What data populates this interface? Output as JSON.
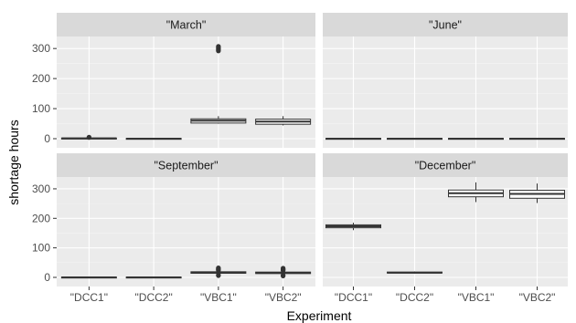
{
  "chart_data": {
    "type": "boxplot",
    "xlabel": "Experiment",
    "ylabel": "shortage hours",
    "ylim": [
      0,
      340
    ],
    "yticks": [
      0,
      100,
      200,
      300
    ],
    "categories": [
      "\"DCC1\"",
      "\"DCC2\"",
      "\"VBC1\"",
      "\"VBC2\""
    ],
    "grid": true,
    "colors": {
      "panel": "#ebebeb",
      "strip": "#d9d9d9",
      "grid": "#ffffff",
      "box_fill": "#ffffff",
      "box_line": "#333333"
    },
    "panels": [
      {
        "name": "\"March\"",
        "boxes": [
          {
            "category": "\"DCC1\"",
            "min": 0,
            "q1": 0,
            "median": 1,
            "q3": 2,
            "max": 3,
            "outliers": [
              4,
              5
            ]
          },
          {
            "category": "\"DCC2\"",
            "min": 0,
            "q1": 0,
            "median": 0,
            "q3": 1,
            "max": 1,
            "outliers": []
          },
          {
            "category": "\"VBC1\"",
            "min": 50,
            "q1": 52,
            "median": 60,
            "q3": 66,
            "max": 75,
            "outliers": [
              292,
              295,
              298,
              301,
              304,
              307
            ]
          },
          {
            "category": "\"VBC2\"",
            "min": 44,
            "q1": 48,
            "median": 57,
            "q3": 65,
            "max": 75,
            "outliers": []
          }
        ]
      },
      {
        "name": "\"June\"",
        "boxes": [
          {
            "category": "\"DCC1\"",
            "min": 0,
            "q1": 0,
            "median": 0,
            "q3": 1,
            "max": 1,
            "outliers": []
          },
          {
            "category": "\"DCC2\"",
            "min": 0,
            "q1": 0,
            "median": 0,
            "q3": 1,
            "max": 1,
            "outliers": []
          },
          {
            "category": "\"VBC1\"",
            "min": 0,
            "q1": 0,
            "median": 0,
            "q3": 1,
            "max": 1,
            "outliers": []
          },
          {
            "category": "\"VBC2\"",
            "min": 0,
            "q1": 0,
            "median": 0,
            "q3": 1,
            "max": 1,
            "outliers": []
          }
        ]
      },
      {
        "name": "\"September\"",
        "boxes": [
          {
            "category": "\"DCC1\"",
            "min": 0,
            "q1": 0,
            "median": 0,
            "q3": 1,
            "max": 1,
            "outliers": []
          },
          {
            "category": "\"DCC2\"",
            "min": 0,
            "q1": 0,
            "median": 0,
            "q3": 1,
            "max": 1,
            "outliers": []
          },
          {
            "category": "\"VBC1\"",
            "min": 10,
            "q1": 14,
            "median": 16,
            "q3": 19,
            "max": 22,
            "outliers": [
              6,
              8,
              24,
              26,
              28,
              30,
              32
            ]
          },
          {
            "category": "\"VBC2\"",
            "min": 10,
            "q1": 13,
            "median": 15,
            "q3": 18,
            "max": 21,
            "outliers": [
              5,
              7,
              23,
              25,
              27,
              29,
              31
            ]
          }
        ]
      },
      {
        "name": "\"December\"",
        "boxes": [
          {
            "category": "\"DCC1\"",
            "min": 160,
            "q1": 168,
            "median": 173,
            "q3": 178,
            "max": 185,
            "outliers": []
          },
          {
            "category": "\"DCC2\"",
            "min": 13,
            "q1": 15,
            "median": 16,
            "q3": 18,
            "max": 20,
            "outliers": []
          },
          {
            "category": "\"VBC1\"",
            "min": 255,
            "q1": 273,
            "median": 285,
            "q3": 296,
            "max": 322,
            "outliers": []
          },
          {
            "category": "\"VBC2\"",
            "min": 252,
            "q1": 268,
            "median": 283,
            "q3": 295,
            "max": 318,
            "outliers": []
          }
        ]
      }
    ]
  }
}
